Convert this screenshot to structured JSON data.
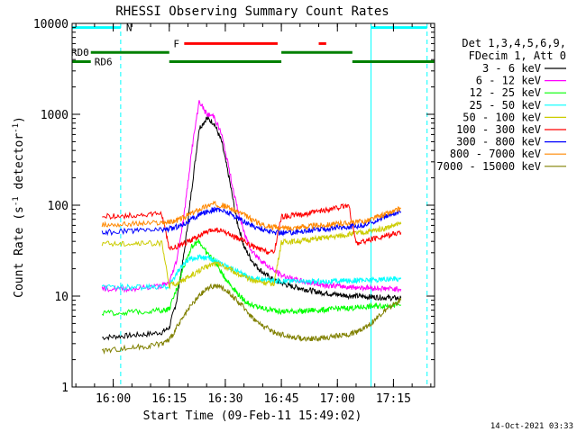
{
  "chart_data": {
    "type": "line",
    "title": "RHESSI Observing Summary Count Rates",
    "xlabel": "Start Time (09-Feb-11 15:49:02)",
    "ylabel_main": "Count Rate (s",
    "ylabel_sup1": "-1",
    "ylabel_mid": " detector",
    "ylabel_sup2": "-1",
    "ylabel_end": ")",
    "yscale": "log",
    "ylim": [
      1,
      10000
    ],
    "xlim_minutes_since_1549": [
      0,
      97
    ],
    "x_ticks": [
      {
        "label": "16:00",
        "minutes": 11
      },
      {
        "label": "16:15",
        "minutes": 26
      },
      {
        "label": "16:30",
        "minutes": 41
      },
      {
        "label": "16:45",
        "minutes": 56
      },
      {
        "label": "17:00",
        "minutes": 71
      },
      {
        "label": "17:15",
        "minutes": 86
      }
    ],
    "y_ticks": [
      {
        "label": "1",
        "value": 1
      },
      {
        "label": "10",
        "value": 10
      },
      {
        "label": "100",
        "value": 100
      },
      {
        "label": "1000",
        "value": 1000
      },
      {
        "label": "10000",
        "value": 10000
      }
    ],
    "legend_header": [
      "Det 1,3,4,5,6,9,",
      "FDecim 1, Att 0"
    ],
    "legend_position": "right",
    "series": [
      {
        "name": "3 - 6 keV",
        "color": "#000000",
        "x": [
          8,
          12,
          16,
          20,
          24,
          26,
          28,
          30,
          32,
          34,
          36,
          38,
          40,
          42,
          44,
          46,
          48,
          50,
          52,
          54,
          56,
          58,
          60,
          62,
          64,
          66,
          68,
          70,
          72,
          74,
          76,
          78,
          80,
          82,
          84,
          86,
          88
        ],
        "y": [
          3.5,
          3.6,
          3.7,
          3.8,
          4,
          4.5,
          9,
          30,
          150,
          700,
          900,
          800,
          500,
          200,
          70,
          35,
          25,
          20,
          17,
          15,
          14,
          13,
          12.5,
          12,
          11.5,
          11,
          10.8,
          10.5,
          10.3,
          10.1,
          10,
          9.9,
          9.8,
          9.7,
          9.6,
          9.5,
          9.5
        ]
      },
      {
        "name": "6 - 12 keV",
        "color": "#ff00ff",
        "x": [
          8,
          12,
          16,
          20,
          24,
          26,
          28,
          30,
          32,
          34,
          36,
          38,
          40,
          42,
          44,
          46,
          48,
          50,
          52,
          54,
          56,
          58,
          60,
          62,
          64,
          66,
          68,
          70,
          72,
          74,
          76,
          78,
          80,
          82,
          84,
          86,
          88
        ],
        "y": [
          12,
          12,
          12,
          12.5,
          13,
          14,
          25,
          80,
          400,
          1400,
          1000,
          950,
          600,
          250,
          100,
          50,
          32,
          26,
          22,
          19,
          17,
          16,
          15,
          14.5,
          14,
          13.5,
          13.2,
          13,
          12.8,
          12.6,
          12.5,
          12.4,
          12.3,
          12.2,
          12.1,
          12,
          12
        ]
      },
      {
        "name": "12 - 25 keV",
        "color": "#00ff00",
        "x": [
          8,
          12,
          16,
          20,
          24,
          26,
          28,
          30,
          32,
          34,
          36,
          38,
          40,
          42,
          44,
          46,
          48,
          50,
          52,
          54,
          56,
          58,
          60,
          62,
          64,
          66,
          68,
          70,
          72,
          74,
          76,
          78,
          80,
          82,
          84,
          86,
          88
        ],
        "y": [
          6.5,
          6.5,
          6.7,
          6.8,
          7,
          7.2,
          12,
          22,
          35,
          40,
          30,
          25,
          18,
          14,
          11,
          9,
          8,
          7.5,
          7.2,
          7,
          6.8,
          6.8,
          6.8,
          6.8,
          7,
          7,
          7.1,
          7.2,
          7.3,
          7.4,
          7.5,
          7.6,
          7.7,
          7.8,
          7.9,
          8,
          8
        ]
      },
      {
        "name": "25 - 50 keV",
        "color": "#00ffff",
        "x": [
          8,
          12,
          16,
          20,
          24,
          26,
          28,
          30,
          32,
          34,
          36,
          38,
          40,
          42,
          44,
          46,
          48,
          50,
          52,
          54,
          56,
          58,
          60,
          62,
          64,
          66,
          68,
          70,
          72,
          74,
          76,
          78,
          80,
          82,
          84,
          86,
          88
        ],
        "y": [
          12.5,
          12.5,
          12.5,
          12.5,
          12.5,
          13,
          18,
          23,
          26,
          27,
          26,
          25,
          23,
          21,
          19,
          17,
          16,
          15.5,
          15,
          14.8,
          14.5,
          14.5,
          14.5,
          14.5,
          14.5,
          14.5,
          14.6,
          14.6,
          14.7,
          14.8,
          14.9,
          15,
          15.1,
          15.2,
          15.3,
          15.5,
          15.5
        ]
      },
      {
        "name": "50 - 100 keV",
        "color": "#cccc00",
        "x": [
          8,
          12,
          16,
          20,
          24,
          26,
          28,
          30,
          32,
          34,
          36,
          38,
          40,
          42,
          44,
          46,
          48,
          50,
          52,
          54,
          56,
          58,
          60,
          62,
          64,
          66,
          68,
          70,
          72,
          74,
          76,
          78,
          80,
          82,
          84,
          86,
          88
        ],
        "y": [
          38,
          38,
          38,
          38,
          38,
          13,
          14,
          15,
          17,
          19,
          21,
          23,
          22,
          20,
          18,
          16,
          15,
          14.5,
          14,
          13.5,
          39,
          40,
          40,
          41,
          42,
          43,
          44,
          45,
          46,
          48,
          49,
          50,
          52,
          54,
          56,
          60,
          62
        ]
      },
      {
        "name": "100 - 300 keV",
        "color": "#ff0000",
        "x": [
          8,
          12,
          16,
          20,
          24,
          26,
          28,
          30,
          32,
          34,
          36,
          38,
          40,
          42,
          44,
          46,
          48,
          50,
          52,
          54,
          56,
          58,
          60,
          62,
          64,
          66,
          68,
          70,
          72,
          74,
          76,
          78,
          80,
          82,
          84,
          86,
          88
        ],
        "y": [
          75,
          76,
          77,
          78,
          80,
          33,
          35,
          38,
          42,
          46,
          50,
          54,
          52,
          48,
          44,
          40,
          36,
          33,
          31,
          30,
          75,
          76,
          78,
          80,
          82,
          85,
          88,
          92,
          95,
          100,
          38,
          40,
          42,
          44,
          46,
          48,
          50
        ]
      },
      {
        "name": "300 - 800 keV",
        "color": "#0000ff",
        "x": [
          8,
          12,
          16,
          20,
          24,
          26,
          28,
          30,
          32,
          34,
          36,
          38,
          40,
          42,
          44,
          46,
          48,
          50,
          52,
          54,
          56,
          58,
          60,
          62,
          64,
          66,
          68,
          70,
          72,
          74,
          76,
          78,
          80,
          82,
          84,
          86,
          88
        ],
        "y": [
          50,
          51,
          52,
          53,
          54,
          55,
          58,
          63,
          70,
          78,
          85,
          90,
          88,
          82,
          74,
          66,
          60,
          56,
          53,
          50,
          50,
          50,
          51,
          52,
          53,
          54,
          55,
          56,
          57,
          58,
          59,
          60,
          65,
          70,
          75,
          80,
          85
        ]
      },
      {
        "name": "800 - 7000 keV",
        "color": "#ff8800",
        "x": [
          8,
          12,
          16,
          20,
          24,
          26,
          28,
          30,
          32,
          34,
          36,
          38,
          40,
          42,
          44,
          46,
          48,
          50,
          52,
          54,
          56,
          58,
          60,
          62,
          64,
          66,
          68,
          70,
          72,
          74,
          76,
          78,
          80,
          82,
          84,
          86,
          88
        ],
        "y": [
          60,
          61,
          62,
          63,
          64,
          65,
          68,
          74,
          82,
          90,
          98,
          103,
          100,
          94,
          86,
          78,
          70,
          64,
          60,
          57,
          56,
          56,
          57,
          58,
          59,
          60,
          61,
          62,
          63,
          64,
          65,
          66,
          70,
          75,
          80,
          85,
          92
        ]
      },
      {
        "name": "7000 - 15000 keV",
        "color": "#808000",
        "x": [
          8,
          12,
          16,
          20,
          24,
          26,
          28,
          30,
          32,
          34,
          36,
          38,
          40,
          42,
          44,
          46,
          48,
          50,
          52,
          54,
          56,
          58,
          60,
          62,
          64,
          66,
          68,
          70,
          72,
          74,
          76,
          78,
          80,
          82,
          84,
          86,
          88
        ],
        "y": [
          2.5,
          2.6,
          2.7,
          2.8,
          3,
          3.3,
          4.5,
          6,
          8,
          10,
          12,
          13,
          12.5,
          11,
          9,
          7.5,
          6,
          5,
          4.5,
          4,
          3.8,
          3.6,
          3.5,
          3.4,
          3.4,
          3.4,
          3.5,
          3.6,
          3.7,
          3.8,
          4,
          4.5,
          5,
          6,
          7,
          8,
          9
        ]
      }
    ],
    "status_bars": [
      {
        "label": "N",
        "color": "#00ffff",
        "value": 9000,
        "segments": [
          [
            0,
            13
          ],
          [
            80,
            95
          ]
        ]
      },
      {
        "label": "F",
        "color": "#ff0000",
        "value": 6000,
        "segments": [
          [
            30,
            55
          ],
          [
            66,
            68
          ]
        ]
      },
      {
        "label": "RD0",
        "color": "#008000",
        "value": 4800,
        "segments": [
          [
            5,
            26
          ],
          [
            56,
            75
          ]
        ]
      },
      {
        "label": "RD6",
        "color": "#008000",
        "value": 3800,
        "segments": [
          [
            0,
            5
          ],
          [
            26,
            56
          ],
          [
            75,
            97
          ]
        ]
      }
    ],
    "vertical_markers": [
      {
        "minutes": 0,
        "color": "#00ffff",
        "style": "solid"
      },
      {
        "minutes": 13,
        "color": "#00ffff",
        "style": "dashed"
      },
      {
        "minutes": 80,
        "color": "#00ffff",
        "style": "solid"
      },
      {
        "minutes": 95,
        "color": "#00ffff",
        "style": "dashed"
      }
    ],
    "timestamp": "14-Oct-2021 03:33"
  }
}
